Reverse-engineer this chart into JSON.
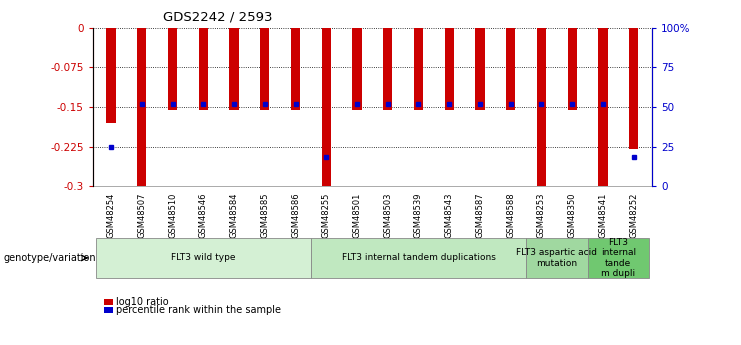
{
  "title": "GDS2242 / 2593",
  "samples": [
    "GSM48254",
    "GSM48507",
    "GSM48510",
    "GSM48546",
    "GSM48584",
    "GSM48585",
    "GSM48586",
    "GSM48255",
    "GSM48501",
    "GSM48503",
    "GSM48539",
    "GSM48543",
    "GSM48587",
    "GSM48588",
    "GSM48253",
    "GSM48350",
    "GSM48541",
    "GSM48252"
  ],
  "log10_ratio": [
    -0.18,
    -0.3,
    -0.155,
    -0.155,
    -0.155,
    -0.155,
    -0.155,
    -0.3,
    -0.155,
    -0.155,
    -0.155,
    -0.155,
    -0.155,
    -0.155,
    -0.3,
    -0.155,
    -0.3,
    -0.23
  ],
  "percentile_rank_left": [
    -0.225,
    -0.145,
    -0.145,
    -0.145,
    -0.145,
    -0.145,
    -0.145,
    -0.245,
    -0.145,
    -0.145,
    -0.145,
    -0.145,
    -0.145,
    -0.145,
    -0.145,
    -0.145,
    -0.145,
    -0.245
  ],
  "groups": [
    {
      "label": "FLT3 wild type",
      "start": 0,
      "end": 7,
      "color": "#d4f0d4"
    },
    {
      "label": "FLT3 internal tandem duplications",
      "start": 7,
      "end": 14,
      "color": "#c0e8c0"
    },
    {
      "label": "FLT3 aspartic acid\nmutation",
      "start": 14,
      "end": 16,
      "color": "#a0d8a0"
    },
    {
      "label": "FLT3\ninternal\ntande\nm dupli",
      "start": 16,
      "end": 18,
      "color": "#70c870"
    }
  ],
  "ylim_left": [
    -0.3,
    0
  ],
  "yticks_left": [
    0,
    -0.075,
    -0.15,
    -0.225,
    -0.3
  ],
  "yticks_left_labels": [
    "0",
    "-0.075",
    "-0.15",
    "-0.225",
    "-0.3"
  ],
  "yticks_right": [
    0,
    25,
    50,
    75,
    100
  ],
  "yticks_right_labels": [
    "0",
    "25",
    "50",
    "75",
    "100%"
  ],
  "bar_color": "#cc0000",
  "dot_color": "#0000cc",
  "legend_label_bar": "log10 ratio",
  "legend_label_dot": "percentile rank within the sample",
  "bar_width": 0.3
}
